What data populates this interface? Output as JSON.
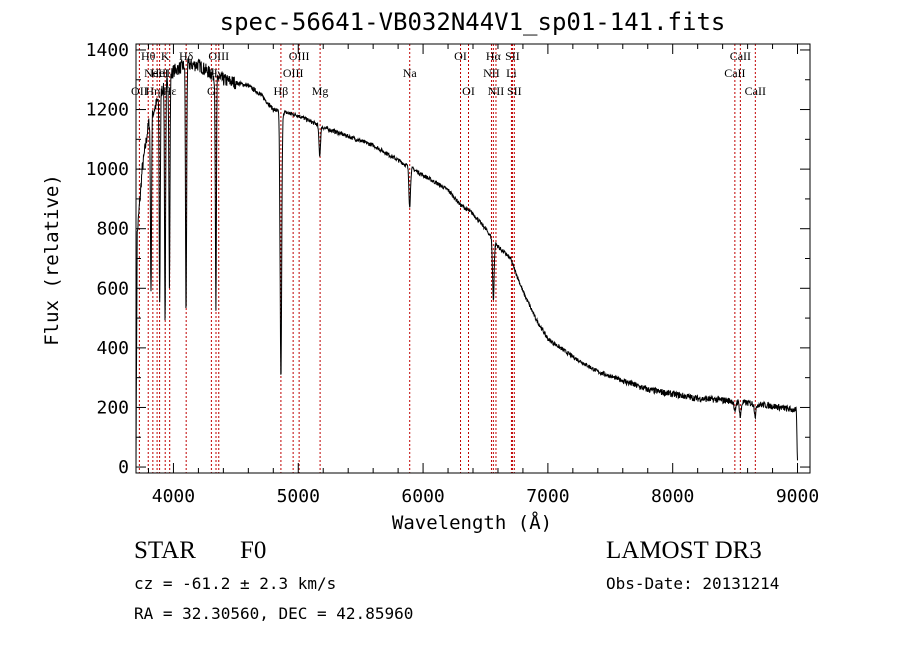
{
  "chart_data": {
    "type": "line",
    "title": "spec-56641-VB032N44V1_sp01-141.fits",
    "xlabel": "Wavelength (Å)",
    "ylabel": "Flux (relative)",
    "xlim": [
      3700,
      9100
    ],
    "ylim": [
      -20,
      1420
    ],
    "xticks": [
      4000,
      5000,
      6000,
      7000,
      8000,
      9000
    ],
    "yticks": [
      0,
      200,
      400,
      600,
      800,
      1000,
      1200,
      1400
    ],
    "series": [
      {
        "name": "spectrum",
        "continuum": [
          [
            3700,
            20
          ],
          [
            3710,
            780
          ],
          [
            3750,
            1000
          ],
          [
            3800,
            1150
          ],
          [
            3900,
            1260
          ],
          [
            4000,
            1330
          ],
          [
            4100,
            1350
          ],
          [
            4200,
            1350
          ],
          [
            4300,
            1320
          ],
          [
            4400,
            1300
          ],
          [
            4500,
            1290
          ],
          [
            4600,
            1280
          ],
          [
            4700,
            1250
          ],
          [
            4800,
            1200
          ],
          [
            4900,
            1190
          ],
          [
            5000,
            1180
          ],
          [
            5200,
            1140
          ],
          [
            5400,
            1110
          ],
          [
            5600,
            1080
          ],
          [
            5800,
            1030
          ],
          [
            6000,
            980
          ],
          [
            6200,
            930
          ],
          [
            6300,
            880
          ],
          [
            6400,
            850
          ],
          [
            6500,
            800
          ],
          [
            6600,
            740
          ],
          [
            6700,
            700
          ],
          [
            6800,
            590
          ],
          [
            6900,
            500
          ],
          [
            7000,
            430
          ],
          [
            7200,
            370
          ],
          [
            7400,
            320
          ],
          [
            7600,
            290
          ],
          [
            7800,
            260
          ],
          [
            8000,
            245
          ],
          [
            8200,
            230
          ],
          [
            8400,
            225
          ],
          [
            8600,
            215
          ],
          [
            8800,
            205
          ],
          [
            8990,
            190
          ],
          [
            9000,
            15
          ]
        ],
        "absorption": [
          [
            3820,
            600
          ],
          [
            3890,
            700
          ],
          [
            3933,
            800
          ],
          [
            3968,
            700
          ],
          [
            4101,
            850
          ],
          [
            4340,
            800
          ],
          [
            4861,
            900
          ],
          [
            5172,
            100
          ],
          [
            5893,
            130
          ],
          [
            6563,
            200
          ],
          [
            8498,
            40
          ],
          [
            8542,
            50
          ],
          [
            8662,
            40
          ]
        ]
      }
    ],
    "line_markers": [
      {
        "wl": 3727,
        "label": "OII",
        "row": 3,
        "color": "#c00000"
      },
      {
        "wl": 3798,
        "label": "Hθ",
        "row": 1,
        "color": "#c00000"
      },
      {
        "wl": 3835,
        "label": "Hη",
        "row": 3,
        "color": "#c00000"
      },
      {
        "wl": 3869,
        "label": "NeIII",
        "row": 2,
        "color": "#c00000"
      },
      {
        "wl": 3889,
        "label": "HeI",
        "row": 2,
        "color": "#c00000"
      },
      {
        "wl": 3934,
        "label": "K",
        "row": 1,
        "color": "#c00000"
      },
      {
        "wl": 3970,
        "label": "Hε",
        "row": 3,
        "color": "#c00000"
      },
      {
        "wl": 4102,
        "label": "Hδ",
        "row": 1,
        "color": "#c00000"
      },
      {
        "wl": 4304,
        "label": "G",
        "row": 3,
        "color": "#c00000"
      },
      {
        "wl": 4341,
        "label": "Hγ",
        "row": 2,
        "color": "#c00000"
      },
      {
        "wl": 4363,
        "label": "OIII",
        "row": 1,
        "color": "#c00000"
      },
      {
        "wl": 4861,
        "label": "Hβ",
        "row": 3,
        "color": "#c00000"
      },
      {
        "wl": 4959,
        "label": "OIII",
        "row": 2,
        "color": "#c00000"
      },
      {
        "wl": 5007,
        "label": "OIII",
        "row": 1,
        "color": "#c00000"
      },
      {
        "wl": 5175,
        "label": "Mg",
        "row": 3,
        "color": "#c00000"
      },
      {
        "wl": 5893,
        "label": "Na",
        "row": 2,
        "color": "#c00000"
      },
      {
        "wl": 6300,
        "label": "OI",
        "row": 1,
        "color": "#c00000"
      },
      {
        "wl": 6364,
        "label": "OI",
        "row": 3,
        "color": "#c00000"
      },
      {
        "wl": 6548,
        "label": "NII",
        "row": 2,
        "color": "#c00000"
      },
      {
        "wl": 6563,
        "label": "Hα",
        "row": 1,
        "color": "#c00000"
      },
      {
        "wl": 6584,
        "label": "NII",
        "row": 3,
        "color": "#c00000"
      },
      {
        "wl": 6708,
        "label": "Li",
        "row": 2,
        "color": "#c00000"
      },
      {
        "wl": 6716,
        "label": "SII",
        "row": 1,
        "color": "#c00000"
      },
      {
        "wl": 6731,
        "label": "SII",
        "row": 3,
        "color": "#c00000"
      },
      {
        "wl": 8498,
        "label": "CaII",
        "row": 2,
        "color": "#c00000"
      },
      {
        "wl": 8542,
        "label": "CaII",
        "row": 1,
        "color": "#c00000"
      },
      {
        "wl": 8662,
        "label": "CaII",
        "row": 3,
        "color": "#c00000"
      }
    ]
  },
  "info": {
    "object_type": "STAR",
    "subclass": "F0",
    "survey": "LAMOST DR3",
    "cz": "cz = -61.2 ± 2.3 km/s",
    "obs_date": "Obs-Date: 20131214",
    "coords": "RA =  32.30560, DEC =  42.85960"
  }
}
